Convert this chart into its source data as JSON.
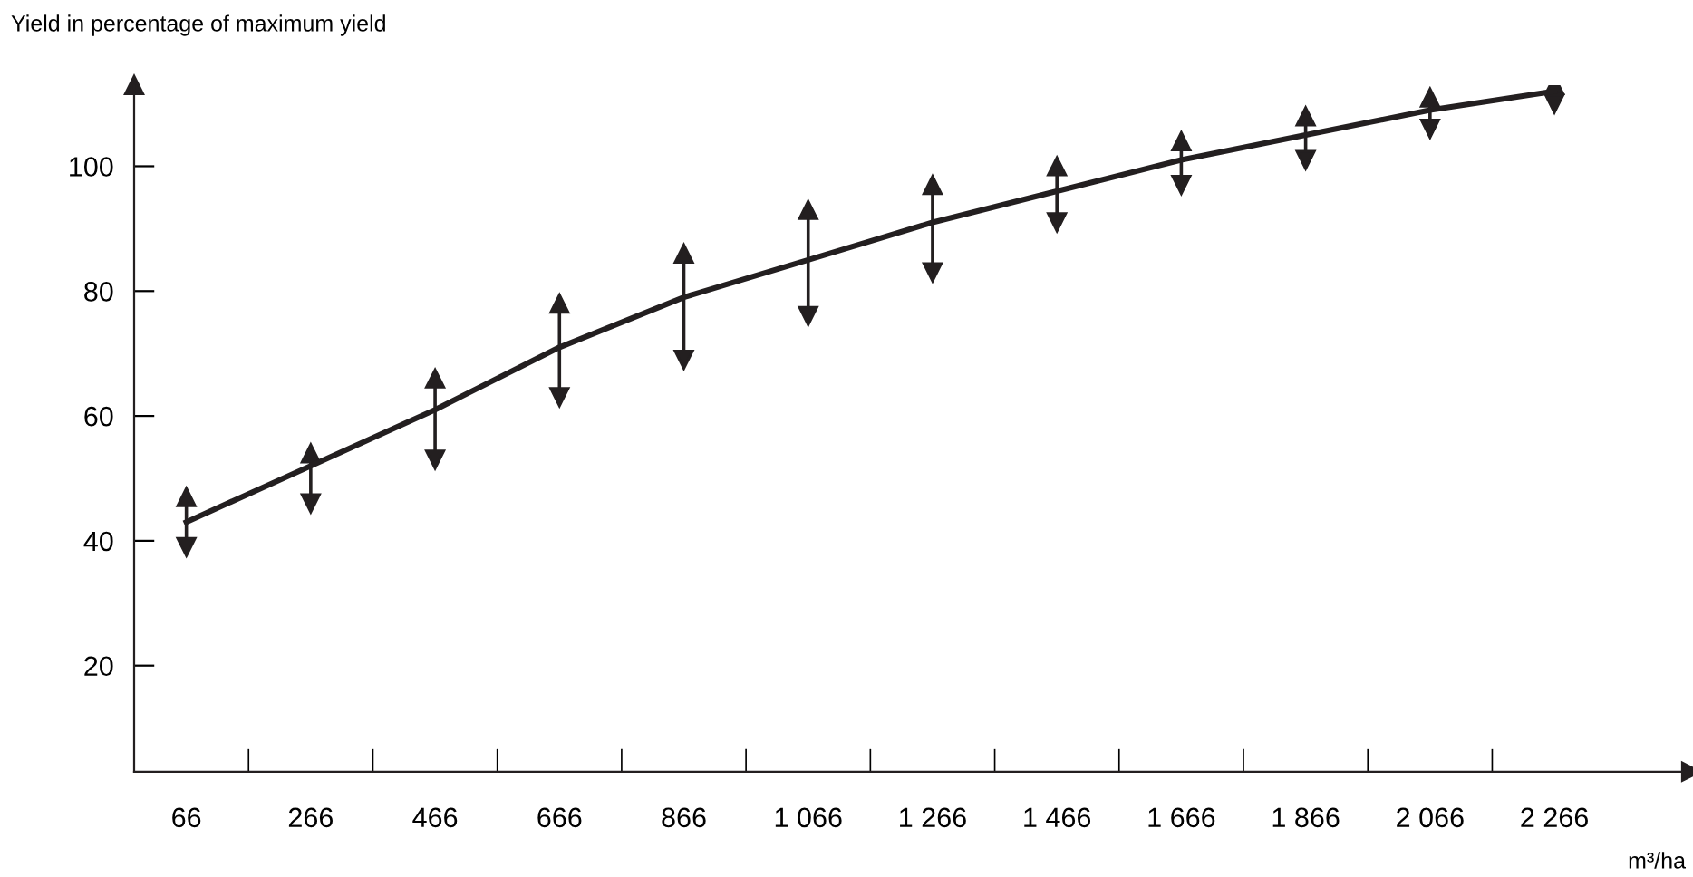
{
  "chart_data": {
    "type": "line",
    "ylabel": "Yield in percentage of maximum yield",
    "xlabel": "m³/ha",
    "categories": [
      "66",
      "266",
      "466",
      "666",
      "866",
      "1 066",
      "1 266",
      "1 466",
      "1 666",
      "1 866",
      "2 066",
      "2 266"
    ],
    "series": [
      {
        "color": "#231f20",
        "values": [
          43,
          52,
          61,
          71,
          79,
          85,
          91,
          96,
          101,
          105,
          109,
          112
        ],
        "errors": [
          [
            39,
            47
          ],
          [
            46,
            54
          ],
          [
            53,
            66
          ],
          [
            63,
            78
          ],
          [
            69,
            86
          ],
          [
            76,
            93
          ],
          [
            83,
            97
          ],
          [
            91,
            100
          ],
          [
            97,
            104
          ],
          [
            101,
            108
          ],
          [
            106,
            111
          ],
          [
            110,
            113
          ]
        ]
      }
    ],
    "ylim": [
      3,
      113
    ],
    "yticks": [
      20,
      40,
      60,
      80,
      100
    ],
    "grid": false,
    "legend": false,
    "marker": "none",
    "line_style": "solid"
  }
}
